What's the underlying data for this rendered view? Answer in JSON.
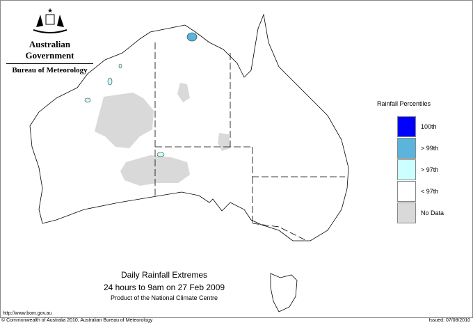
{
  "header": {
    "government": "Australian Government",
    "bureau": "Bureau of Meteorology",
    "logo": "coat-of-arms"
  },
  "legend": {
    "title": "Rainfall Percentiles",
    "items": [
      {
        "label": "100th",
        "color": "#0000ff"
      },
      {
        "label": "> 99th",
        "color": "#5ab4dc"
      },
      {
        "label": "> 97th",
        "color": "#ccffff"
      },
      {
        "label": "< 97th",
        "color": "#ffffff"
      },
      {
        "label": "No Data",
        "color": "#d9d9d9"
      }
    ]
  },
  "titles": {
    "title": "Daily Rainfall Extremes",
    "period": "24 hours to 9am on 27 Feb 2009",
    "product": "Product of the National Climate Centre"
  },
  "url": "http://www.bom.gov.au",
  "footer": {
    "copyright": "© Commonwealth of Australia 2010, Australian Bureau of Meteorology",
    "issued": "Issued: 07/08/2010"
  }
}
